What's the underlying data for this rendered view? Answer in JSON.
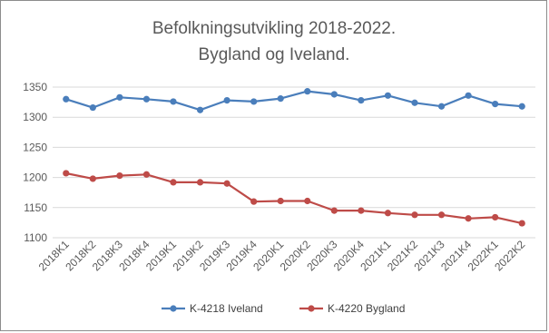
{
  "chart_data": {
    "type": "line",
    "title": "Befolkningsutvikling 2018-2022.",
    "subtitle": "Bygland og Iveland.",
    "categories": [
      "2018K1",
      "2018K2",
      "2018K3",
      "2018K4",
      "2019K1",
      "2019K2",
      "2019K3",
      "2019K4",
      "2020K1",
      "2020K2",
      "2020K3",
      "2020K4",
      "2021K1",
      "2021K2",
      "2021K3",
      "2021K4",
      "2022K1",
      "2022K2"
    ],
    "ylim": [
      1100,
      1350
    ],
    "yticks": [
      1100,
      1150,
      1200,
      1250,
      1300,
      1350
    ],
    "grid": true,
    "legend_position": "bottom",
    "series": [
      {
        "name": "K-4218 Iveland",
        "color": "#4a7ebb",
        "values": [
          1330,
          1316,
          1333,
          1330,
          1326,
          1312,
          1328,
          1326,
          1331,
          1343,
          1338,
          1328,
          1336,
          1324,
          1318,
          1336,
          1322,
          1318
        ]
      },
      {
        "name": "K-4220 Bygland",
        "color": "#be4b48",
        "values": [
          1207,
          1198,
          1203,
          1205,
          1192,
          1192,
          1190,
          1160,
          1161,
          1161,
          1145,
          1145,
          1141,
          1138,
          1138,
          1132,
          1134,
          1124
        ]
      }
    ]
  }
}
